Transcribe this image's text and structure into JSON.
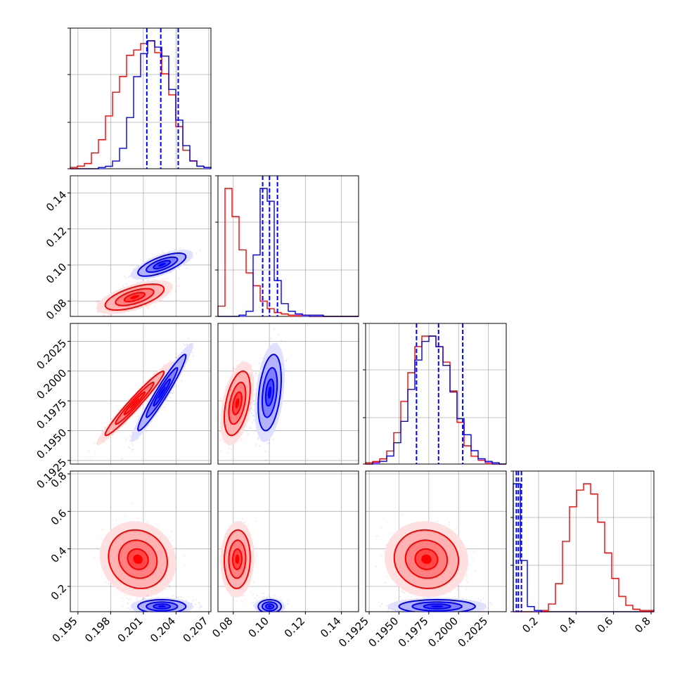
{
  "chart_data": {
    "type": "corner",
    "parameters": [
      {
        "range": [
          0.1943,
          0.2072
        ],
        "ticks": [
          0.195,
          0.198,
          0.201,
          0.204,
          0.207
        ],
        "tick_labels": [
          "0.195",
          "0.198",
          "0.201",
          "0.204",
          "0.207"
        ]
      },
      {
        "range": [
          0.0715,
          0.1495
        ],
        "ticks": [
          0.08,
          0.1,
          0.12,
          0.14
        ],
        "tick_labels": [
          "0.08",
          "0.10",
          "0.12",
          "0.14"
        ]
      },
      {
        "range": [
          0.1922,
          0.204
        ],
        "ticks": [
          0.1925,
          0.195,
          0.1975,
          0.2,
          0.2025
        ],
        "tick_labels": [
          "0.1925",
          "0.1950",
          "0.1975",
          "0.2000",
          "0.2025"
        ]
      },
      {
        "range": [
          0.065,
          0.815
        ],
        "ticks": [
          0.2,
          0.4,
          0.6,
          0.8
        ],
        "tick_labels": [
          "0.2",
          "0.4",
          "0.6",
          "0.8"
        ]
      }
    ],
    "series": [
      {
        "color": "#ff0000",
        "marginals": [
          {
            "edges": [
              0.1943,
              0.2072
            ],
            "counts": [
              1,
              2,
              4,
              12,
              22,
              40,
              58,
              70,
              86,
              90,
              95,
              97,
              88,
              72,
              56,
              32,
              14,
              6,
              2,
              1
            ]
          },
          {
            "edges": [
              0.0715,
              0.1495
            ],
            "counts": [
              8,
              100,
              78,
              52,
              34,
              24,
              12,
              6,
              3,
              2,
              1,
              1,
              1,
              0,
              0,
              0,
              0,
              0,
              0,
              0
            ]
          },
          {
            "edges": [
              0.1922,
              0.204
            ],
            "counts": [
              1,
              2,
              4,
              10,
              24,
              48,
              70,
              90,
              98,
              98,
              90,
              78,
              56,
              32,
              14,
              6,
              3,
              1,
              0,
              0
            ]
          },
          {
            "edges": [
              0.065,
              0.815
            ],
            "counts": [
              0,
              0,
              0,
              0,
              1,
              6,
              22,
              55,
              82,
              95,
              100,
              92,
              70,
              46,
              26,
              12,
              5,
              2,
              1,
              1
            ]
          }
        ],
        "pairs": [
          {
            "x": 0,
            "y": 1,
            "center": [
              0.2002,
              0.0822
            ],
            "sigma": [
              0.00135,
              0.0036
            ],
            "rho": 0.62
          },
          {
            "x": 0,
            "y": 2,
            "center": [
              0.2002,
              0.1973
            ],
            "sigma": [
              0.00135,
              0.00135
            ],
            "rho": 0.97
          },
          {
            "x": 1,
            "y": 2,
            "center": [
              0.0822,
              0.1973
            ],
            "sigma": [
              0.0036,
              0.00135
            ],
            "rho": 0.45
          },
          {
            "x": 0,
            "y": 3,
            "center": [
              0.2005,
              0.345
            ],
            "sigma": [
              0.00135,
              0.078
            ],
            "rho": -0.1
          },
          {
            "x": 1,
            "y": 3,
            "center": [
              0.0822,
              0.345
            ],
            "sigma": [
              0.0036,
              0.078
            ],
            "rho": 0.05
          },
          {
            "x": 2,
            "y": 3,
            "center": [
              0.1973,
              0.345
            ],
            "sigma": [
              0.00135,
              0.078
            ],
            "rho": -0.05
          }
        ]
      },
      {
        "color": "#0000ff",
        "marginals": [
          {
            "edges": [
              0.1943,
              0.2072
            ],
            "counts": [
              0,
              0,
              0,
              0,
              1,
              2,
              6,
              16,
              40,
              72,
              90,
              100,
              95,
              88,
              62,
              38,
              18,
              6,
              2,
              1
            ]
          },
          {
            "edges": [
              0.0715,
              0.1495
            ],
            "counts": [
              0,
              0,
              0,
              1,
              4,
              48,
              100,
              90,
              28,
              10,
              4,
              2,
              1,
              1,
              1,
              0,
              0,
              0,
              0,
              0
            ]
          },
          {
            "edges": [
              0.1922,
              0.204
            ],
            "counts": [
              0,
              1,
              2,
              6,
              16,
              32,
              56,
              78,
              92,
              96,
              88,
              74,
              54,
              34,
              22,
              10,
              4,
              2,
              1,
              0
            ]
          },
          {
            "edges": [
              0.065,
              0.815
            ],
            "counts": [
              100,
              40,
              4,
              1,
              0,
              0,
              0,
              0,
              0,
              0,
              0,
              0,
              0,
              0,
              0,
              0,
              0,
              0,
              0,
              0
            ]
          }
        ],
        "pairs": [
          {
            "x": 0,
            "y": 1,
            "center": [
              0.2027,
              0.1002
            ],
            "sigma": [
              0.0011,
              0.0032
            ],
            "rho": 0.7
          },
          {
            "x": 0,
            "y": 2,
            "center": [
              0.2027,
              0.1982
            ],
            "sigma": [
              0.0011,
              0.0016
            ],
            "rho": 0.96
          },
          {
            "x": 1,
            "y": 2,
            "center": [
              0.1002,
              0.1982
            ],
            "sigma": [
              0.0032,
              0.0016
            ],
            "rho": 0.35
          },
          {
            "x": 0,
            "y": 3,
            "center": [
              0.2027,
              0.093
            ],
            "sigma": [
              0.0011,
              0.018
            ],
            "rho": 0.0
          },
          {
            "x": 1,
            "y": 3,
            "center": [
              0.1002,
              0.093
            ],
            "sigma": [
              0.0032,
              0.018
            ],
            "rho": 0.0
          },
          {
            "x": 2,
            "y": 3,
            "center": [
              0.1982,
              0.093
            ],
            "sigma": [
              0.0016,
              0.018
            ],
            "rho": 0.0
          }
        ]
      }
    ],
    "quantiles": [
      {
        "values": [
          0.20132,
          0.2026,
          0.2042
        ]
      },
      {
        "values": [
          0.0963,
          0.1001,
          0.1045
        ]
      },
      {
        "values": [
          0.19647,
          0.19832,
          0.20035
        ]
      },
      {
        "values": [
          0.0815,
          0.0925,
          0.1085
        ]
      }
    ],
    "grid": true
  }
}
